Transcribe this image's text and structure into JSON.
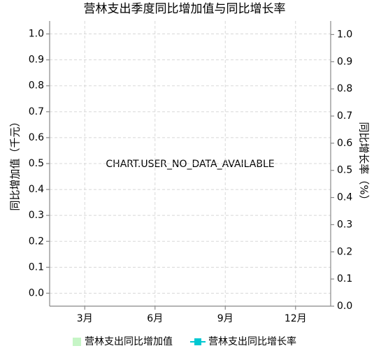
{
  "chart_data": {
    "type": "bar-line",
    "title": "营林支出季度同比增加值与同比增长率",
    "ylabel": "同比增加值（千元）",
    "y2label": "同比增长率（%）",
    "annotation": "CHART.USER_NO_DATA_AVAILABLE",
    "categories": [
      "3月",
      "6月",
      "9月",
      "12月"
    ],
    "series": [
      {
        "name": "营林支出同比增加值",
        "color": "#c6f5c6",
        "type": "bar",
        "values": [
          null,
          null,
          null,
          null
        ]
      },
      {
        "name": "营林支出同比增长率",
        "color": "#00c8d2",
        "type": "line",
        "axis": "y2",
        "values": [
          null,
          null,
          null,
          null
        ]
      }
    ],
    "ylim": [
      -0.05,
      1.05
    ],
    "yticks": [
      {
        "value": 0,
        "label": "0.0"
      },
      0.1,
      0.2,
      0.3,
      0.4,
      0.5,
      0.6,
      0.7,
      0.8,
      0.9,
      {
        "value": 1,
        "label": "1.0"
      }
    ],
    "y2lim": [
      0,
      1.05
    ],
    "y2ticks": [
      {
        "value": 0,
        "label": "0.0"
      },
      0.1,
      0.2,
      0.3,
      0.4,
      0.5,
      0.6,
      0.7,
      0.8,
      0.9,
      {
        "value": 1,
        "label": "1.0"
      }
    ],
    "grid": true,
    "legend": "bottom"
  }
}
